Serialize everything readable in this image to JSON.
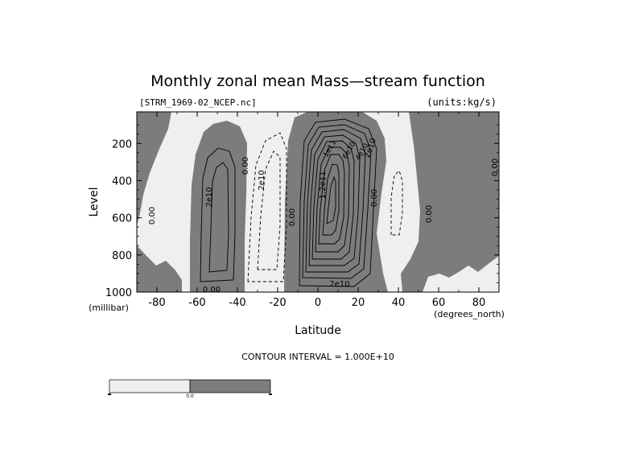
{
  "chart_data": {
    "type": "contour",
    "title": "Monthly zonal mean Mass—stream function",
    "file_label": "[STRM_1969-02_NCEP.nc]",
    "units_label": "(units:kg/s)",
    "xlabel": "Latitude",
    "xunit": "(degrees_north)",
    "ylabel": "Level",
    "yunit": "(millibar)",
    "x_ticks": [
      "-80",
      "-60",
      "-40",
      "-20",
      "0",
      "20",
      "40",
      "60",
      "80"
    ],
    "y_ticks": [
      "200",
      "400",
      "600",
      "800",
      "1000"
    ],
    "xlim": [
      -90,
      90
    ],
    "ylim": [
      1000,
      30
    ],
    "contour_interval_text": "CONTOUR INTERVAL = 1.000E+10",
    "contour_labels": [
      "0.00",
      "2e10",
      "0.00",
      "2e10",
      "0.00",
      "1.2e11",
      "1e11",
      "2e10",
      "4e10",
      "6e10",
      "0.00",
      "0.00",
      "0.00",
      "2e10",
      "0.00"
    ],
    "colorbar_center_label": "0.0",
    "colors": {
      "positive": "#7c7c7c",
      "negative": "#efefef",
      "line": "#000000",
      "background": "#ffffff"
    }
  }
}
